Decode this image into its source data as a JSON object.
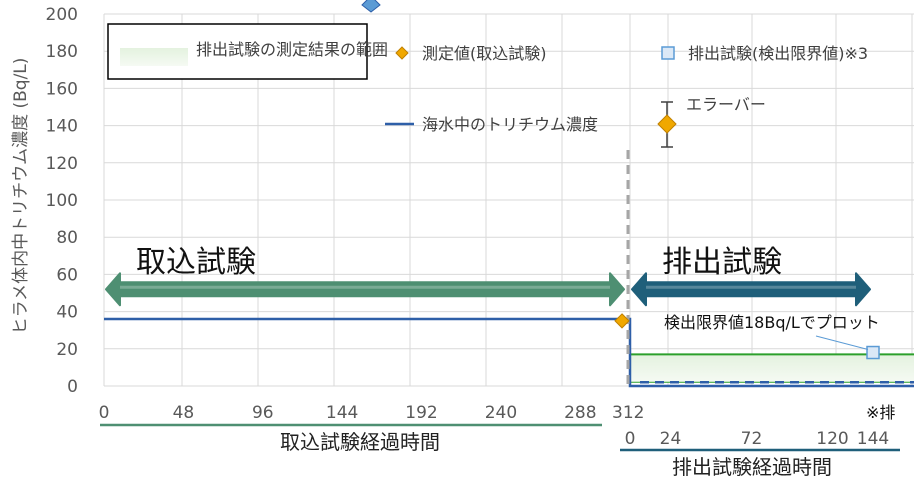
{
  "chart_data": {
    "type": "line",
    "ylabel": "ヒラメ体内中トリチウム濃度 (Bq/L)",
    "ylim": [
      0,
      200
    ],
    "yticks": [
      0,
      20,
      40,
      60,
      80,
      100,
      120,
      140,
      160,
      180,
      200
    ],
    "x_intake": {
      "label": "取込試験経過時間",
      "ticks": [
        "0",
        "48",
        "96",
        "144",
        "192",
        "240",
        "288"
      ],
      "end_tick": "312"
    },
    "x_discharge": {
      "label": "排出試験経過時間",
      "ticks": [
        "0",
        "24",
        "72",
        "120",
        "144"
      ]
    },
    "phases": {
      "intake": "取込試験",
      "discharge": "排出試験"
    },
    "legend": {
      "range": "排出試験の測定結果の範囲",
      "measured": "測定値(取込試験)",
      "discharge_marker": "排出試験(検出限界値)※3",
      "seawater": "海水中のトリチウム濃度",
      "errorbar": "エラーバー"
    },
    "series": [
      {
        "name": "海水中のトリチウム濃度",
        "points": [
          [
            0,
            36
          ],
          [
            312,
            36
          ],
          [
            312,
            0
          ],
          [
            500,
            0
          ]
        ]
      },
      {
        "name": "測定値(取込試験)",
        "points": [
          [
            312,
            35
          ]
        ]
      },
      {
        "name": "排出試験(検出限界値)※3",
        "points": [
          [
            144,
            18
          ]
        ]
      }
    ],
    "range_band": [
      2,
      17
    ],
    "annotations": {
      "detection_limit": "検出限界値18Bq/Lでプロット",
      "footnote": "※排"
    },
    "colors": {
      "seawater": "#2e5fa8",
      "measured": "#f0a800",
      "discharge": "#5b9bd5",
      "range": "#2ca02c",
      "intake_arrow": "#4e8f72",
      "discharge_arrow": "#1f5f7a"
    }
  }
}
